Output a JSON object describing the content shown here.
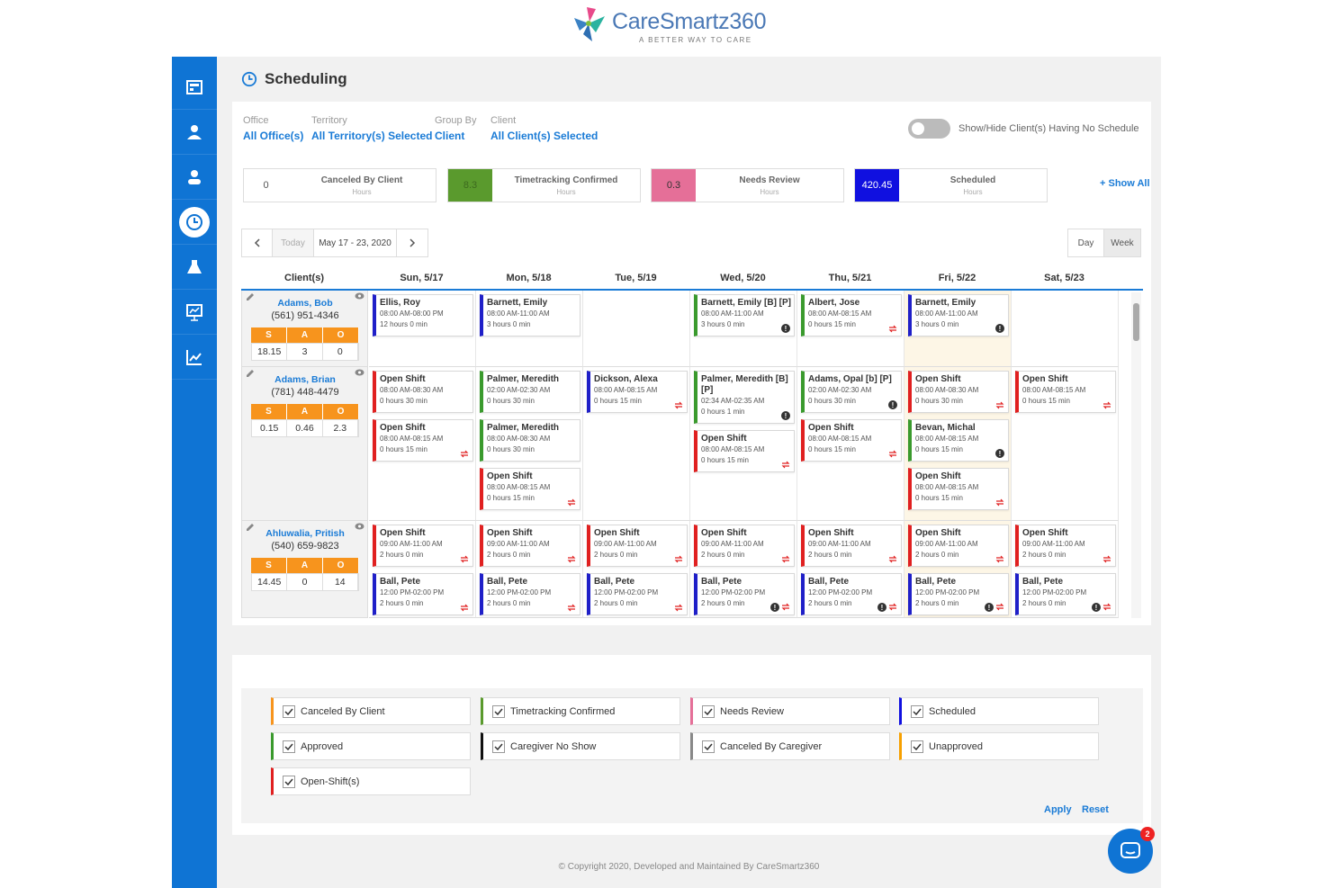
{
  "brand": {
    "name": "CareSmartz360",
    "tagline": "A BETTER WAY TO CARE"
  },
  "page": {
    "title": "Scheduling"
  },
  "filters": [
    {
      "label": "Office",
      "value": "All Office(s)"
    },
    {
      "label": "Territory",
      "value": "All Territory(s) Selected"
    },
    {
      "label": "Group By",
      "value": "Client"
    },
    {
      "label": "Client",
      "value": "All Client(s) Selected"
    }
  ],
  "toggle_label": "Show/Hide Client(s) Having No Schedule",
  "summary": [
    {
      "value": "0",
      "title": "Canceled By Client",
      "sub": "Hours",
      "color": "#ffffff",
      "text": "#555"
    },
    {
      "value": "8.3",
      "title": "Timetracking Confirmed",
      "sub": "Hours",
      "color": "#5a9a2d",
      "text": "#3d6a1f"
    },
    {
      "value": "0.3",
      "title": "Needs Review",
      "sub": "Hours",
      "color": "#e56f98",
      "text": "#333"
    },
    {
      "value": "420.45",
      "title": "Scheduled",
      "sub": "Hours",
      "color": "#1010e0",
      "text": "#ffffff"
    }
  ],
  "show_all": "+ Show All",
  "nav": {
    "today": "Today",
    "range": "May 17 - 23, 2020"
  },
  "views": {
    "day": "Day",
    "week": "Week"
  },
  "columns": [
    "Client(s)",
    "Sun, 5/17",
    "Mon, 5/18",
    "Tue, 5/19",
    "Wed, 5/20",
    "Thu, 5/21",
    "Fri, 5/22",
    "Sat, 5/23"
  ],
  "clients": [
    {
      "name": "Adams, Bob",
      "phone": "(561) 951-4346",
      "sao_h": [
        "S",
        "A",
        "O"
      ],
      "sao_v": [
        "18.15",
        "3",
        "0"
      ]
    },
    {
      "name": "Adams, Brian",
      "phone": "(781) 448-4479",
      "sao_h": [
        "S",
        "A",
        "O"
      ],
      "sao_v": [
        "0.15",
        "0.46",
        "2.3"
      ]
    },
    {
      "name": "Ahluwalia, Pritish",
      "phone": "(540) 659-9823",
      "sao_h": [
        "S",
        "A",
        "O"
      ],
      "sao_v": [
        "14.45",
        "0",
        "14"
      ]
    }
  ],
  "shifts": [
    {
      "n": "Ellis, Roy",
      "t": "08:00 AM-08:00 PM",
      "d": "12 hours 0 min",
      "c": "#1f1fc8"
    },
    {
      "n": "Barnett, Emily",
      "t": "08:00 AM-11:00 AM",
      "d": "3 hours 0 min",
      "c": "#1f1fc8"
    },
    {
      "n": "Barnett, Emily [B] [P]",
      "t": "08:00 AM-11:00 AM",
      "d": "3 hours 0 min",
      "c": "#3a9a2d",
      "i": true
    },
    {
      "n": "Albert, Jose",
      "t": "08:00 AM-08:15 AM",
      "d": "0 hours 15 min",
      "c": "#3a9a2d",
      "r": true
    },
    {
      "n": "Barnett, Emily",
      "t": "08:00 AM-11:00 AM",
      "d": "3 hours 0 min",
      "c": "#1f1fc8",
      "i": true
    },
    {
      "n": "Open Shift",
      "t": "08:00 AM-08:30 AM",
      "d": "0 hours 30 min",
      "c": "#e02020"
    },
    {
      "n": "Open Shift",
      "t": "08:00 AM-08:15 AM",
      "d": "0 hours 15 min",
      "c": "#e02020",
      "r": true
    },
    {
      "n": "Palmer, Meredith",
      "t": "02:00 AM-02:30 AM",
      "d": "0 hours 30 min",
      "c": "#3a9a2d"
    },
    {
      "n": "Palmer, Meredith",
      "t": "08:00 AM-08:30 AM",
      "d": "0 hours 30 min",
      "c": "#3a9a2d"
    },
    {
      "n": "Open Shift",
      "t": "08:00 AM-08:15 AM",
      "d": "0 hours 15 min",
      "c": "#e02020",
      "r": true
    },
    {
      "n": "Dickson, Alexa",
      "t": "08:00 AM-08:15 AM",
      "d": "0 hours 15 min",
      "c": "#1f1fc8",
      "r": true
    },
    {
      "n": "Palmer, Meredith [B]",
      "n2": "[P]",
      "t": "02:34 AM-02:35 AM",
      "d": "0 hours 1 min",
      "c": "#3a9a2d",
      "i": true
    },
    {
      "n": "Open Shift",
      "t": "08:00 AM-08:15 AM",
      "d": "0 hours 15 min",
      "c": "#e02020",
      "r": true
    },
    {
      "n": "Adams, Opal [b] [P]",
      "t": "02:00 AM-02:30 AM",
      "d": "0 hours 30 min",
      "c": "#3a9a2d",
      "i": true
    },
    {
      "n": "Open Shift",
      "t": "08:00 AM-08:15 AM",
      "d": "0 hours 15 min",
      "c": "#e02020",
      "r": true
    },
    {
      "n": "Open Shift",
      "t": "08:00 AM-08:30 AM",
      "d": "0 hours 30 min",
      "c": "#e02020",
      "r": true
    },
    {
      "n": "Bevan, Michal",
      "t": "08:00 AM-08:15 AM",
      "d": "0 hours 15 min",
      "c": "#3a9a2d",
      "i": true
    },
    {
      "n": "Open Shift",
      "t": "08:00 AM-08:15 AM",
      "d": "0 hours 15 min",
      "c": "#e02020",
      "r": true
    },
    {
      "n": "Open Shift",
      "t": "08:00 AM-08:15 AM",
      "d": "0 hours 15 min",
      "c": "#e02020",
      "r": true
    },
    {
      "n": "Open Shift",
      "t": "09:00 AM-11:00 AM",
      "d": "2 hours 0 min",
      "c": "#e02020",
      "r": true
    },
    {
      "n": "Open Shift",
      "t": "09:00 AM-11:00 AM",
      "d": "2 hours 0 min",
      "c": "#e02020",
      "r": true
    },
    {
      "n": "Open Shift",
      "t": "09:00 AM-11:00 AM",
      "d": "2 hours 0 min",
      "c": "#e02020",
      "r": true
    },
    {
      "n": "Open Shift",
      "t": "09:00 AM-11:00 AM",
      "d": "2 hours 0 min",
      "c": "#e02020",
      "r": true
    },
    {
      "n": "Open Shift",
      "t": "09:00 AM-11:00 AM",
      "d": "2 hours 0 min",
      "c": "#e02020",
      "r": true
    },
    {
      "n": "Open Shift",
      "t": "09:00 AM-11:00 AM",
      "d": "2 hours 0 min",
      "c": "#e02020",
      "r": true
    },
    {
      "n": "Open Shift",
      "t": "09:00 AM-11:00 AM",
      "d": "2 hours 0 min",
      "c": "#e02020",
      "r": true
    },
    {
      "n": "Ball, Pete",
      "t": "12:00 PM-02:00 PM",
      "d": "2 hours 0 min",
      "c": "#1f1fc8",
      "r": true
    },
    {
      "n": "Ball, Pete",
      "t": "12:00 PM-02:00 PM",
      "d": "2 hours 0 min",
      "c": "#1f1fc8",
      "r": true
    },
    {
      "n": "Ball, Pete",
      "t": "12:00 PM-02:00 PM",
      "d": "2 hours 0 min",
      "c": "#1f1fc8",
      "r": true
    },
    {
      "n": "Ball, Pete",
      "t": "12:00 PM-02:00 PM",
      "d": "2 hours 0 min",
      "c": "#1f1fc8",
      "i": true,
      "r": true
    },
    {
      "n": "Ball, Pete",
      "t": "12:00 PM-02:00 PM",
      "d": "2 hours 0 min",
      "c": "#1f1fc8",
      "i": true,
      "r": true
    },
    {
      "n": "Ball, Pete",
      "t": "12:00 PM-02:00 PM",
      "d": "2 hours 0 min",
      "c": "#1f1fc8",
      "i": true,
      "r": true
    },
    {
      "n": "Ball, Pete",
      "t": "12:00 PM-02:00 PM",
      "d": "2 hours 0 min",
      "c": "#1f1fc8",
      "i": true,
      "r": true
    }
  ],
  "legend": [
    {
      "label": "Canceled By Client",
      "color": "#f7941d"
    },
    {
      "label": "Timetracking Confirmed",
      "color": "#5a9a2d"
    },
    {
      "label": "Needs Review",
      "color": "#e56f98"
    },
    {
      "label": "Scheduled",
      "color": "#1010e0"
    },
    {
      "label": "Approved",
      "color": "#3a9a2d"
    },
    {
      "label": "Caregiver No Show",
      "color": "#111111"
    },
    {
      "label": "Canceled By Caregiver",
      "color": "#888888"
    },
    {
      "label": "Unapproved",
      "color": "#f7a000"
    },
    {
      "label": "Open-Shift(s)",
      "color": "#e02020"
    }
  ],
  "actions": {
    "apply": "Apply",
    "reset": "Reset"
  },
  "copyright": "© Copyright 2020, Developed and Maintained By CareSmartz360",
  "chat": {
    "badge": "2"
  },
  "icons": [
    "dashboard-icon",
    "clients-icon",
    "caregivers-icon",
    "scheduling-icon",
    "billing-icon",
    "reports-icon",
    "analytics-icon"
  ]
}
